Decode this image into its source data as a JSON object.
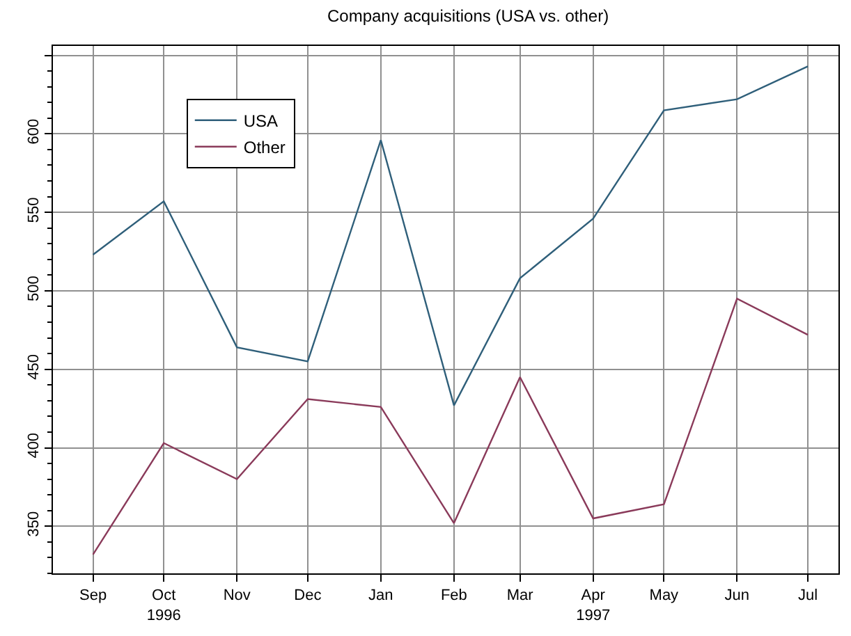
{
  "chart_data": {
    "type": "line",
    "title": "Company acquisitions (USA vs. other)",
    "x": [
      "1996-09",
      "1996-10",
      "1996-11",
      "1996-12",
      "1997-01",
      "1997-02",
      "1997-03",
      "1997-04",
      "1997-05",
      "1997-06",
      "1997-07"
    ],
    "series": [
      {
        "name": "USA",
        "color": "#2f5f7a",
        "values": [
          523,
          557,
          464,
          455,
          596,
          427,
          508,
          546,
          615,
          622,
          643
        ]
      },
      {
        "name": "Other",
        "color": "#8a3a5a",
        "values": [
          332,
          403,
          380,
          431,
          426,
          352,
          445,
          355,
          364,
          495,
          472
        ]
      }
    ],
    "xlim": [
      "1996-08-15",
      "1997-07-14"
    ],
    "xticks": [
      {
        "value": "1996-09",
        "label": "Sep"
      },
      {
        "value": "1996-10",
        "label": "Oct\n1996"
      },
      {
        "value": "1996-11",
        "label": "Nov"
      },
      {
        "value": "1996-12",
        "label": "Dec"
      },
      {
        "value": "1997-01",
        "label": "Jan"
      },
      {
        "value": "1997-02",
        "label": "Feb"
      },
      {
        "value": "1997-03",
        "label": "Mar"
      },
      {
        "value": "1997-04",
        "label": "Apr\n1997"
      },
      {
        "value": "1997-05",
        "label": "May"
      },
      {
        "value": "1997-06",
        "label": "Jun"
      },
      {
        "value": "1997-07",
        "label": "Jul"
      }
    ],
    "ylim": [
      320,
      656
    ],
    "yticks": [
      350,
      400,
      450,
      500,
      550,
      600,
      {
        "value": 650,
        "label": null
      }
    ],
    "grid": true,
    "legend": "top left",
    "marker": "none",
    "line_style": "solid"
  }
}
